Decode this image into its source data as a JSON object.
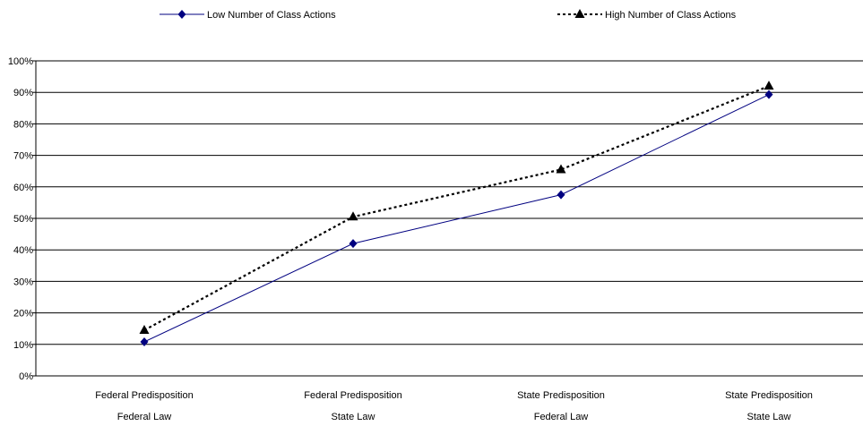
{
  "chart_data": {
    "type": "line",
    "title": "",
    "xlabel": "",
    "ylabel": "",
    "categories": [
      [
        "Federal Predisposition",
        "Federal Law"
      ],
      [
        "Federal Predisposition",
        "State Law"
      ],
      [
        "State Predisposition",
        "Federal Law"
      ],
      [
        "State Predisposition",
        "State Law"
      ]
    ],
    "ylim": [
      0,
      100
    ],
    "yticks": [
      "0%",
      "10%",
      "20%",
      "30%",
      "40%",
      "50%",
      "60%",
      "70%",
      "80%",
      "90%",
      "100%"
    ],
    "grid": true,
    "legend_position": "top",
    "series": [
      {
        "name": "Low Number of Class Actions",
        "values": [
          10.8,
          42.0,
          57.5,
          89.3
        ],
        "color": "#000080",
        "marker": "diamond",
        "line_style": "solid"
      },
      {
        "name": "High Number of Class Actions",
        "values": [
          14.5,
          50.5,
          65.5,
          92.0
        ],
        "color": "#000000",
        "marker": "triangle",
        "line_style": "dotted"
      }
    ]
  }
}
